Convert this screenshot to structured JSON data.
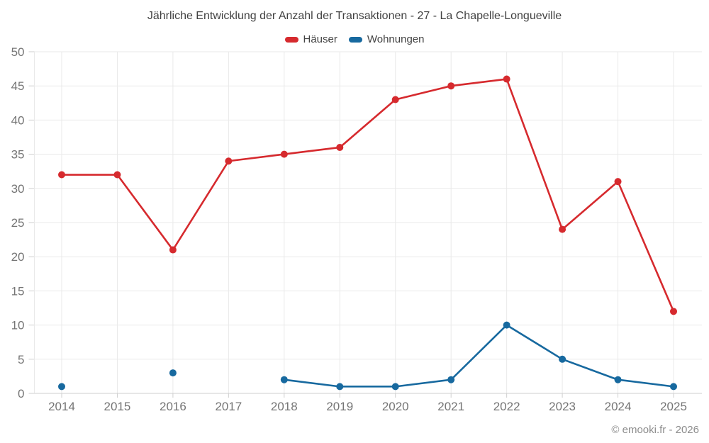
{
  "copyright": "© emooki.fr - 2026",
  "colors": {
    "hauser": "#d62a2e",
    "wohnungen": "#17699f",
    "grid": "#e9e9e9",
    "axis": "#cfcfcf",
    "tick_label": "#757575",
    "title": "#424242"
  },
  "chart_data": {
    "type": "line",
    "title": "Jährliche Entwicklung der Anzahl der Transaktionen - 27 - La Chapelle-Longueville",
    "categories": [
      "2014",
      "2015",
      "2016",
      "2017",
      "2018",
      "2019",
      "2020",
      "2021",
      "2022",
      "2023",
      "2024",
      "2025"
    ],
    "series": [
      {
        "name": "Häuser",
        "color": "#d62a2e",
        "values": [
          32,
          32,
          21,
          34,
          35,
          36,
          43,
          45,
          46,
          24,
          31,
          12
        ]
      },
      {
        "name": "Wohnungen",
        "color": "#17699f",
        "values": [
          1,
          null,
          3,
          null,
          2,
          1,
          1,
          2,
          10,
          5,
          2,
          1
        ]
      }
    ],
    "xlabel": "",
    "ylabel": "",
    "ylim": [
      0,
      50
    ],
    "yticks": [
      0,
      5,
      10,
      15,
      20,
      25,
      30,
      35,
      40,
      45,
      50
    ],
    "grid": true,
    "legend_position": "top",
    "marker": "circle"
  }
}
